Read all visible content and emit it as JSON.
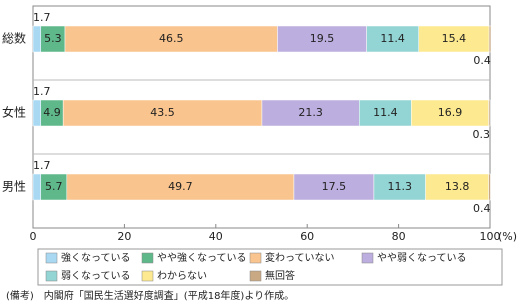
{
  "chart_data": {
    "type": "stacked_bar_horizontal",
    "categories": [
      "総数",
      "女性",
      "男性"
    ],
    "series": [
      {
        "name": "強くなっている",
        "color": "#a9d9f2",
        "values": [
          1.7,
          1.7,
          1.7
        ]
      },
      {
        "name": "やや強くなっている",
        "color": "#5fb88a",
        "values": [
          5.3,
          4.9,
          5.7
        ]
      },
      {
        "name": "変わっていない",
        "color": "#f9c48e",
        "values": [
          46.5,
          43.5,
          49.7
        ]
      },
      {
        "name": "やや弱くなっている",
        "color": "#bcaede",
        "values": [
          19.5,
          21.3,
          17.5
        ]
      },
      {
        "name": "弱くなっている",
        "color": "#93d4d4",
        "values": [
          11.4,
          11.4,
          11.3
        ]
      },
      {
        "name": "わからない",
        "color": "#fde98f",
        "values": [
          15.4,
          16.9,
          13.8
        ]
      },
      {
        "name": "無回答",
        "color": "#c9a984",
        "values": [
          0.4,
          0.3,
          0.4
        ]
      }
    ],
    "xlim": [
      0,
      100
    ],
    "xticks": [
      0,
      20,
      40,
      60,
      80,
      100
    ],
    "xlabel": "(%)",
    "note": "(備考)　内閣府「国民生活選好度調査」(平成18年度)より作成。"
  }
}
